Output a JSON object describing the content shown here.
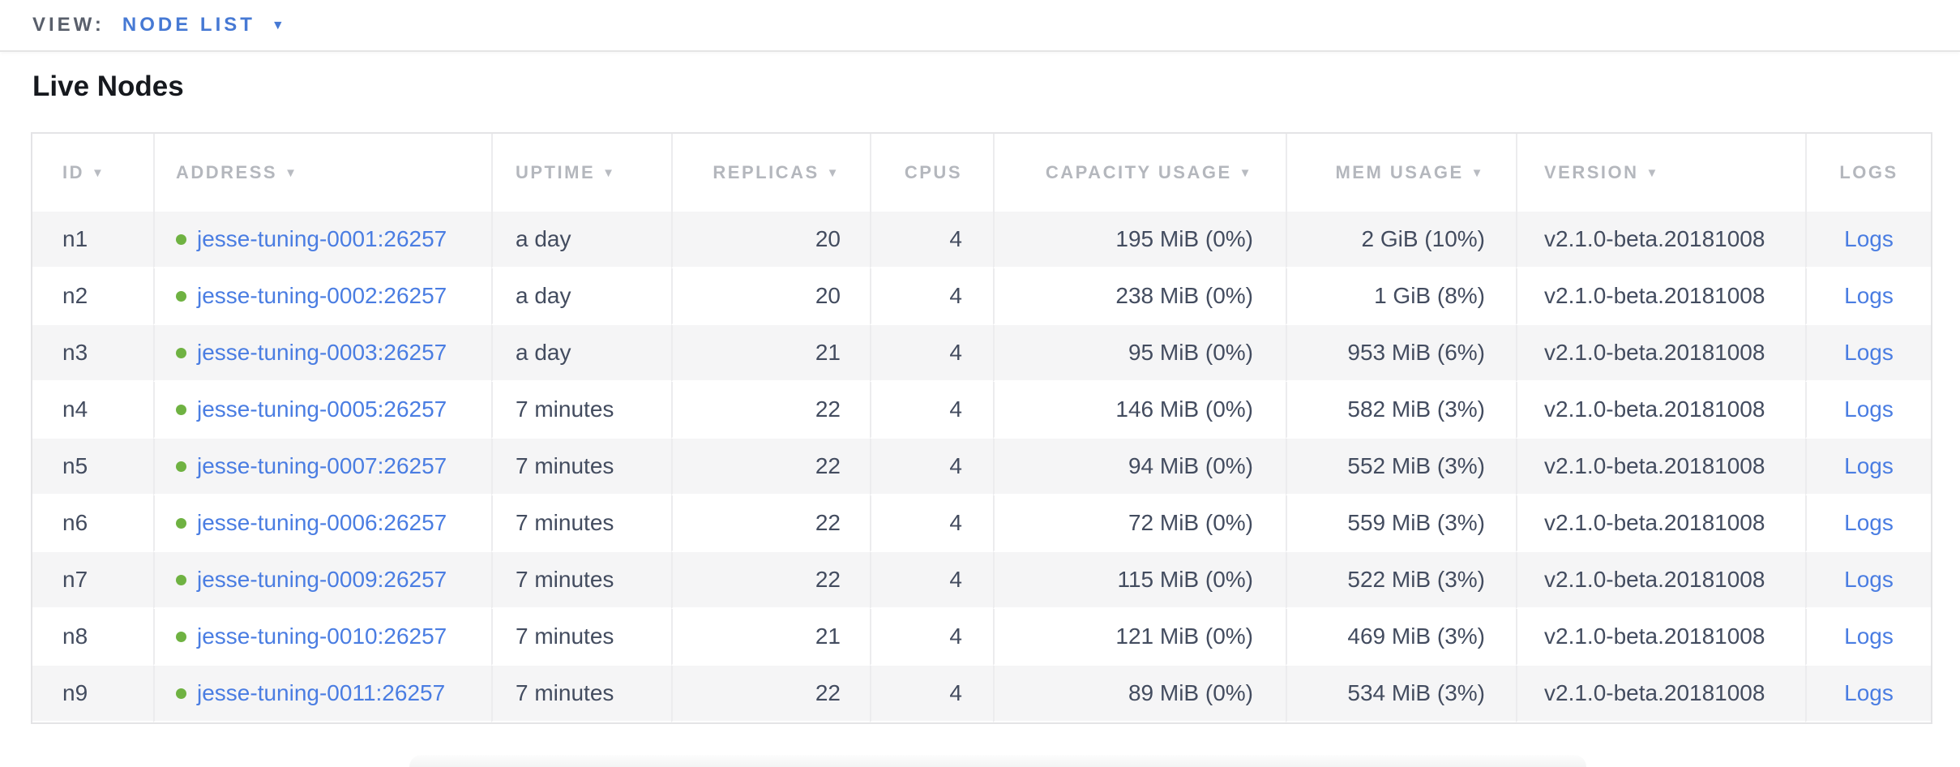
{
  "view_bar": {
    "label": "VIEW:",
    "selected": "NODE LIST"
  },
  "page": {
    "title": "Live Nodes"
  },
  "icons": {
    "sort_caret": "▼",
    "dropdown_caret": "▼",
    "status_dot": "circle"
  },
  "colors": {
    "accent_blue": "#4679d4",
    "link_blue": "#4a7de2",
    "status_green": "#6fb242",
    "header_gray": "#b4b7bd",
    "cell_text": "#434c5f",
    "zebra_gray": "#f5f5f6",
    "border_gray": "#e4e4e6"
  },
  "table": {
    "columns": [
      {
        "key": "id",
        "label": "ID",
        "sortable": true
      },
      {
        "key": "address",
        "label": "ADDRESS",
        "sortable": true
      },
      {
        "key": "uptime",
        "label": "UPTIME",
        "sortable": true
      },
      {
        "key": "replicas",
        "label": "REPLICAS",
        "sortable": true
      },
      {
        "key": "cpus",
        "label": "CPUS",
        "sortable": false
      },
      {
        "key": "capacity",
        "label": "CAPACITY USAGE",
        "sortable": true
      },
      {
        "key": "mem",
        "label": "MEM USAGE",
        "sortable": true
      },
      {
        "key": "version",
        "label": "VERSION",
        "sortable": true
      },
      {
        "key": "logs",
        "label": "LOGS",
        "sortable": false
      }
    ],
    "rows": [
      {
        "id": "n1",
        "address": "jesse-tuning-0001:26257",
        "uptime": "a day",
        "replicas": "20",
        "cpus": "4",
        "capacity": "195 MiB (0%)",
        "mem": "2 GiB (10%)",
        "version": "v2.1.0-beta.20181008",
        "logs": "Logs"
      },
      {
        "id": "n2",
        "address": "jesse-tuning-0002:26257",
        "uptime": "a day",
        "replicas": "20",
        "cpus": "4",
        "capacity": "238 MiB (0%)",
        "mem": "1 GiB (8%)",
        "version": "v2.1.0-beta.20181008",
        "logs": "Logs"
      },
      {
        "id": "n3",
        "address": "jesse-tuning-0003:26257",
        "uptime": "a day",
        "replicas": "21",
        "cpus": "4",
        "capacity": "95 MiB (0%)",
        "mem": "953 MiB (6%)",
        "version": "v2.1.0-beta.20181008",
        "logs": "Logs"
      },
      {
        "id": "n4",
        "address": "jesse-tuning-0005:26257",
        "uptime": "7 minutes",
        "replicas": "22",
        "cpus": "4",
        "capacity": "146 MiB (0%)",
        "mem": "582 MiB (3%)",
        "version": "v2.1.0-beta.20181008",
        "logs": "Logs"
      },
      {
        "id": "n5",
        "address": "jesse-tuning-0007:26257",
        "uptime": "7 minutes",
        "replicas": "22",
        "cpus": "4",
        "capacity": "94 MiB (0%)",
        "mem": "552 MiB (3%)",
        "version": "v2.1.0-beta.20181008",
        "logs": "Logs"
      },
      {
        "id": "n6",
        "address": "jesse-tuning-0006:26257",
        "uptime": "7 minutes",
        "replicas": "22",
        "cpus": "4",
        "capacity": "72 MiB (0%)",
        "mem": "559 MiB (3%)",
        "version": "v2.1.0-beta.20181008",
        "logs": "Logs"
      },
      {
        "id": "n7",
        "address": "jesse-tuning-0009:26257",
        "uptime": "7 minutes",
        "replicas": "22",
        "cpus": "4",
        "capacity": "115 MiB (0%)",
        "mem": "522 MiB (3%)",
        "version": "v2.1.0-beta.20181008",
        "logs": "Logs"
      },
      {
        "id": "n8",
        "address": "jesse-tuning-0010:26257",
        "uptime": "7 minutes",
        "replicas": "21",
        "cpus": "4",
        "capacity": "121 MiB (0%)",
        "mem": "469 MiB (3%)",
        "version": "v2.1.0-beta.20181008",
        "logs": "Logs"
      },
      {
        "id": "n9",
        "address": "jesse-tuning-0011:26257",
        "uptime": "7 minutes",
        "replicas": "22",
        "cpus": "4",
        "capacity": "89 MiB (0%)",
        "mem": "534 MiB (3%)",
        "version": "v2.1.0-beta.20181008",
        "logs": "Logs"
      }
    ]
  }
}
